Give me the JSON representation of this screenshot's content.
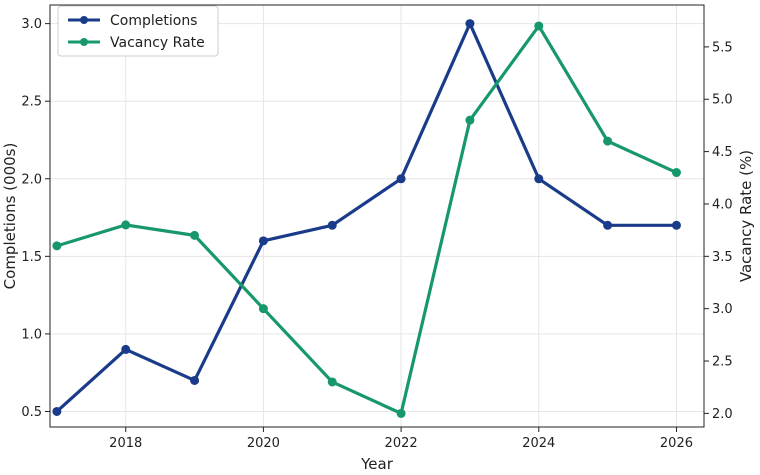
{
  "chart_data": {
    "type": "line",
    "title": "",
    "x": [
      2017,
      2018,
      2019,
      2020,
      2021,
      2022,
      2023,
      2024,
      2025,
      2026
    ],
    "xlabel": "Year",
    "xlim": [
      2016.9,
      2026.4
    ],
    "xticks": [
      2018,
      2020,
      2022,
      2024,
      2026
    ],
    "axes": {
      "left": {
        "label": "Completions (000s)",
        "ylim": [
          0.4,
          3.12
        ],
        "ticks": [
          "0.5",
          "1.0",
          "1.5",
          "2.0",
          "2.5",
          "3.0"
        ]
      },
      "right": {
        "label": "Vacancy Rate (%)",
        "ylim": [
          1.87,
          5.9
        ],
        "ticks": [
          "2.0",
          "2.5",
          "3.0",
          "3.5",
          "4.0",
          "4.5",
          "5.0",
          "5.5"
        ]
      }
    },
    "series": [
      {
        "name": "Completions",
        "axis": "left",
        "color": "#1a3a8a",
        "values": [
          0.5,
          0.9,
          0.7,
          1.6,
          1.7,
          2.0,
          3.0,
          2.0,
          1.7,
          1.7
        ]
      },
      {
        "name": "Vacancy Rate",
        "axis": "right",
        "color": "#17986b",
        "values": [
          3.6,
          3.8,
          3.7,
          3.0,
          2.3,
          2.0,
          4.8,
          5.7,
          4.6,
          4.3
        ]
      }
    ],
    "grid": true,
    "legend": "top-left"
  }
}
